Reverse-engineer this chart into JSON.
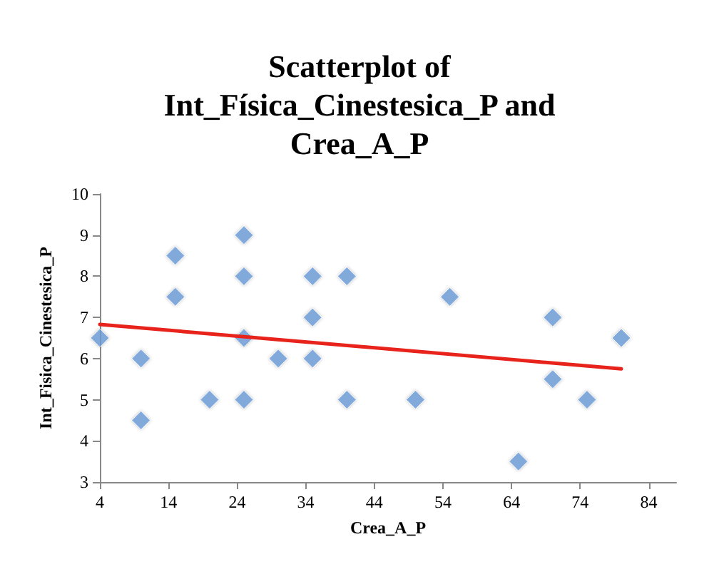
{
  "chart_data": {
    "type": "scatter",
    "title": "Scatterplot of\nInt_Física_Cinestesica_P and\nCrea_A_P",
    "xlabel": "Crea_A_P",
    "ylabel": "Int_Fisica_Cinestesica_P",
    "xlim": [
      4,
      88
    ],
    "xticks": [
      4,
      14,
      24,
      34,
      44,
      54,
      64,
      74,
      84
    ],
    "ylim": [
      3,
      10
    ],
    "yticks": [
      3,
      4,
      5,
      6,
      7,
      8,
      9,
      10
    ],
    "marker": "diamond",
    "grid": false,
    "series": [
      {
        "color": "#6d9eda",
        "x": [
          4,
          10,
          10,
          15,
          15,
          20,
          25,
          25,
          25,
          25,
          30,
          35,
          35,
          35,
          40,
          40,
          50,
          55,
          65,
          70,
          70,
          75,
          80
        ],
        "values": [
          6.5,
          6,
          4.5,
          8.5,
          7.5,
          5,
          9,
          8,
          6.5,
          5,
          6,
          8,
          7,
          6,
          8,
          5,
          5,
          7.5,
          3.5,
          7,
          5.5,
          5,
          6.5
        ]
      },
      {
        "type": "line",
        "color": "#e8231b",
        "x": [
          4,
          80
        ],
        "values": [
          6.83,
          5.75
        ],
        "marker": "none"
      }
    ]
  }
}
